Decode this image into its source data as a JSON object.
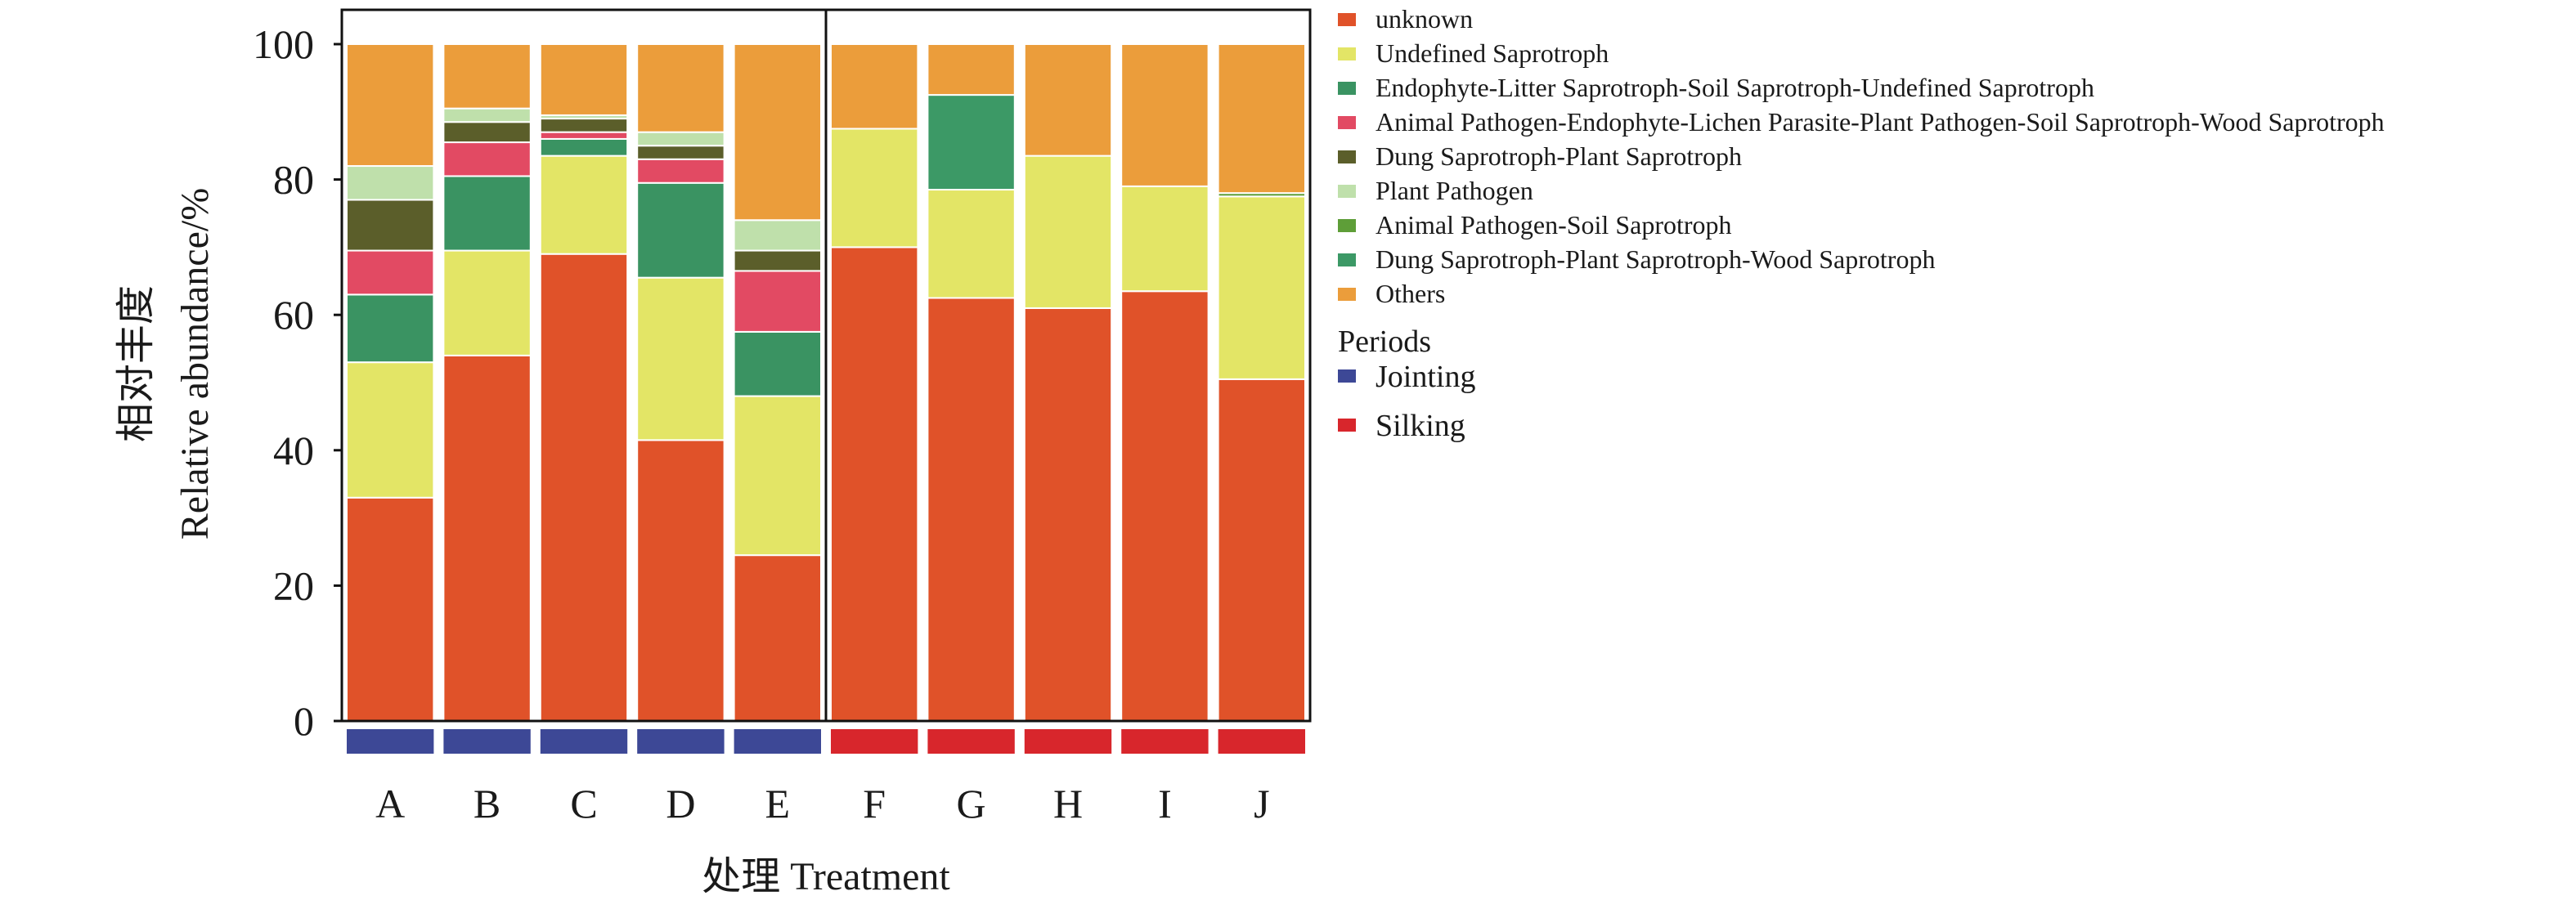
{
  "chart_data": {
    "type": "bar",
    "stacked": true,
    "title": "",
    "xlabel": "处理 Treatment",
    "ylabel_cn": "相对丰度",
    "ylabel_en": "Relative abundance/%",
    "ylim": [
      0,
      100
    ],
    "yticks": [
      0,
      20,
      40,
      60,
      80,
      100
    ],
    "grid": false,
    "legend_position": "right",
    "categories": [
      "A",
      "B",
      "C",
      "D",
      "E",
      "F",
      "G",
      "H",
      "I",
      "J"
    ],
    "series": [
      {
        "name": "unknown",
        "color": "#e05229",
        "values": [
          33,
          54,
          69,
          41.5,
          24.5,
          70,
          62.5,
          61,
          63.5,
          50.5
        ]
      },
      {
        "name": "Undefined Saprotroph",
        "color": "#e3e566",
        "values": [
          20,
          15.5,
          14.5,
          24,
          23.5,
          17.5,
          16,
          22.5,
          15.5,
          27
        ]
      },
      {
        "name": "Endophyte-Litter Saprotroph-Soil Saprotroph-Undefined Saprotroph",
        "color": "#3a9362",
        "values": [
          10,
          11,
          2.5,
          14,
          9.5,
          0,
          0,
          0,
          0,
          0
        ]
      },
      {
        "name": "Animal Pathogen-Endophyte-Lichen Parasite-Plant Pathogen-Soil Saprotroph-Wood Saprotroph",
        "color": "#e24a63",
        "values": [
          6.5,
          5,
          1,
          3.5,
          9,
          0,
          0,
          0,
          0,
          0
        ]
      },
      {
        "name": "Dung Saprotroph-Plant Saprotroph",
        "color": "#5b5e2a",
        "values": [
          7.5,
          3,
          2,
          2,
          3,
          0,
          0,
          0,
          0,
          0
        ]
      },
      {
        "name": "Plant Pathogen",
        "color": "#bfe0ab",
        "values": [
          5,
          2,
          0.5,
          2,
          4.5,
          0,
          0,
          0,
          0,
          0
        ]
      },
      {
        "name": "Animal Pathogen-Soil Saprotroph",
        "color": "#5e9e38",
        "values": [
          0,
          0,
          0,
          0,
          0,
          0,
          0,
          0,
          0,
          0.5
        ]
      },
      {
        "name": "Dung Saprotroph-Plant Saprotroph-Wood Saprotroph",
        "color": "#3c9966",
        "values": [
          0,
          0,
          0,
          0,
          0,
          0,
          14,
          0,
          0,
          0
        ]
      },
      {
        "name": "Others",
        "color": "#eb9d3b",
        "values": [
          18,
          9.5,
          10.5,
          13,
          26,
          12.5,
          7.5,
          16.5,
          21,
          22
        ]
      }
    ],
    "periods_title": "Periods",
    "periods": [
      {
        "name": "Jointing",
        "color": "#3d4896"
      },
      {
        "name": "Silking",
        "color": "#d8262c"
      }
    ],
    "category_period": [
      0,
      0,
      0,
      0,
      0,
      1,
      1,
      1,
      1,
      1
    ]
  }
}
